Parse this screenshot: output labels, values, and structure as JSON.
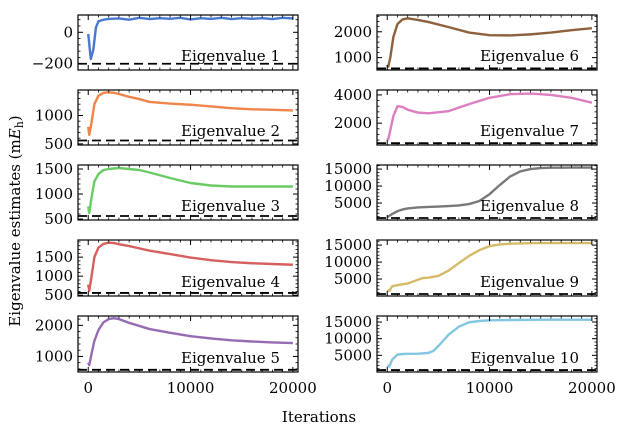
{
  "chart_data": {
    "type": "line",
    "figure": {
      "xlabel": "Iterations",
      "ylabel_prefix": "Eigenvalue estimates (m",
      "ylabel_symbol": "E",
      "ylabel_sub": "h",
      "ylabel_suffix": ")",
      "xlim": [
        -1000,
        20500
      ],
      "xticks": [
        0,
        10000,
        20000
      ],
      "xtick_labels": [
        "0",
        "10000",
        "20000"
      ]
    },
    "panels": [
      {
        "name": "Eigenvalue 1",
        "color": "#4878d0",
        "ylim": [
          -240,
          110
        ],
        "yticks": [
          0,
          -200
        ],
        "ytick_labels": [
          "0",
          "−200"
        ],
        "reference": -200,
        "x": [
          0,
          250,
          500,
          750,
          1000,
          1500,
          2000,
          3000,
          4000,
          5000,
          6000,
          7000,
          8000,
          9000,
          10000,
          11000,
          12000,
          13000,
          14000,
          15000,
          16000,
          17000,
          18000,
          19000,
          20000
        ],
        "y": [
          -10,
          -170,
          -110,
          30,
          70,
          80,
          85,
          88,
          80,
          92,
          84,
          90,
          86,
          92,
          82,
          90,
          85,
          92,
          84,
          90,
          86,
          90,
          84,
          92,
          88
        ]
      },
      {
        "name": "Eigenvalue 2",
        "color": "#ee854a",
        "ylim": [
          480,
          1450
        ],
        "yticks": [
          1000,
          500
        ],
        "ytick_labels": [
          "1000",
          "500"
        ],
        "reference": 560,
        "x": [
          0,
          100,
          300,
          600,
          1000,
          1500,
          2000,
          2500,
          3000,
          4000,
          5000,
          6000,
          8000,
          10000,
          12000,
          14000,
          16000,
          18000,
          20000
        ],
        "y": [
          800,
          660,
          850,
          1200,
          1350,
          1400,
          1410,
          1400,
          1380,
          1330,
          1290,
          1240,
          1210,
          1190,
          1160,
          1130,
          1110,
          1100,
          1090
        ]
      },
      {
        "name": "Eigenvalue 3",
        "color": "#6acc64",
        "ylim": [
          480,
          1580
        ],
        "yticks": [
          1500,
          1000,
          500
        ],
        "ytick_labels": [
          "1500",
          "1000",
          "500"
        ],
        "reference": 560,
        "x": [
          0,
          100,
          300,
          600,
          1000,
          1500,
          2000,
          3000,
          4000,
          5000,
          6000,
          8000,
          10000,
          12000,
          14000,
          16000,
          18000,
          20000
        ],
        "y": [
          750,
          620,
          900,
          1250,
          1400,
          1480,
          1500,
          1520,
          1500,
          1480,
          1430,
          1320,
          1220,
          1170,
          1150,
          1150,
          1150,
          1150
        ]
      },
      {
        "name": "Eigenvalue 4",
        "color": "#d65f5f",
        "ylim": [
          480,
          1950
        ],
        "yticks": [
          1500,
          1000,
          500
        ],
        "ytick_labels": [
          "1500",
          "1000",
          "500"
        ],
        "reference": 560,
        "x": [
          0,
          100,
          300,
          600,
          1000,
          1500,
          2000,
          2500,
          3000,
          4000,
          5000,
          6000,
          8000,
          10000,
          12000,
          14000,
          16000,
          18000,
          20000
        ],
        "y": [
          780,
          620,
          950,
          1500,
          1750,
          1850,
          1880,
          1870,
          1840,
          1790,
          1730,
          1670,
          1580,
          1490,
          1420,
          1370,
          1340,
          1320,
          1300
        ]
      },
      {
        "name": "Eigenvalue 5",
        "color": "#956cb4",
        "ylim": [
          500,
          2300
        ],
        "yticks": [
          2000,
          1000
        ],
        "ytick_labels": [
          "2000",
          "1000"
        ],
        "reference": 570,
        "x": [
          0,
          100,
          300,
          600,
          1000,
          1500,
          2000,
          2500,
          3000,
          4000,
          5000,
          6000,
          8000,
          10000,
          12000,
          14000,
          16000,
          18000,
          20000
        ],
        "y": [
          800,
          720,
          1050,
          1500,
          1850,
          2100,
          2200,
          2230,
          2200,
          2080,
          1980,
          1880,
          1760,
          1650,
          1580,
          1520,
          1480,
          1450,
          1430
        ]
      },
      {
        "name": "Eigenvalue 6",
        "color": "#8c613c",
        "ylim": [
          520,
          2650
        ],
        "yticks": [
          2000,
          1000
        ],
        "ytick_labels": [
          "2000",
          "1000"
        ],
        "reference": 580,
        "x": [
          0,
          100,
          300,
          600,
          1000,
          1500,
          2000,
          3000,
          4000,
          6000,
          8000,
          10000,
          12000,
          14000,
          16000,
          18000,
          20000
        ],
        "y": [
          720,
          650,
          1000,
          1800,
          2300,
          2480,
          2520,
          2460,
          2380,
          2180,
          1970,
          1870,
          1860,
          1900,
          1970,
          2060,
          2140
        ]
      },
      {
        "name": "Eigenvalue 7",
        "color": "#dc7ec0",
        "ylim": [
          450,
          4350
        ],
        "yticks": [
          4000,
          2000
        ],
        "ytick_labels": [
          "4000",
          "2000"
        ],
        "reference": 580,
        "x": [
          0,
          100,
          300,
          600,
          1000,
          1500,
          2000,
          3000,
          4000,
          6000,
          8000,
          10000,
          12000,
          14000,
          16000,
          18000,
          20000
        ],
        "y": [
          950,
          850,
          1500,
          2500,
          3200,
          3150,
          2950,
          2750,
          2700,
          2850,
          3350,
          3800,
          4050,
          4100,
          4000,
          3800,
          3450
        ]
      },
      {
        "name": "Eigenvalue 8",
        "color": "#797979",
        "ylim": [
          0,
          16200
        ],
        "yticks": [
          15000,
          10000,
          5000
        ],
        "ytick_labels": [
          "15000",
          "10000",
          "5000"
        ],
        "reference": 580,
        "x": [
          0,
          200,
          500,
          1000,
          1500,
          2000,
          3000,
          4000,
          5000,
          6000,
          7000,
          8000,
          9000,
          10000,
          11000,
          12000,
          13000,
          14000,
          15000,
          16000,
          17000,
          18000,
          19000,
          20000
        ],
        "y": [
          800,
          1200,
          1800,
          2600,
          3100,
          3400,
          3700,
          3850,
          3950,
          4100,
          4300,
          4700,
          5600,
          7600,
          10300,
          12800,
          14300,
          15000,
          15300,
          15400,
          15400,
          15450,
          15450,
          15450
        ]
      },
      {
        "name": "Eigenvalue 9",
        "color": "#d5bb67",
        "ylim": [
          0,
          16500
        ],
        "yticks": [
          15000,
          10000,
          5000
        ],
        "ytick_labels": [
          "15000",
          "10000",
          "5000"
        ],
        "reference": 580,
        "x": [
          0,
          200,
          500,
          1000,
          2000,
          3000,
          3500,
          4000,
          5000,
          6000,
          7000,
          8000,
          9000,
          10000,
          11000,
          12000,
          13000,
          14000,
          15000,
          16000,
          17000,
          18000,
          19000,
          20000
        ],
        "y": [
          1800,
          1500,
          2900,
          3200,
          3700,
          4800,
          5300,
          5400,
          5900,
          7500,
          9700,
          11800,
          13500,
          14700,
          15200,
          15400,
          15500,
          15550,
          15600,
          15600,
          15600,
          15600,
          15600,
          15600
        ]
      },
      {
        "name": "Eigenvalue 10",
        "color": "#82c6e2",
        "ylim": [
          0,
          16800
        ],
        "yticks": [
          15000,
          10000,
          5000
        ],
        "ytick_labels": [
          "15000",
          "10000",
          "5000"
        ],
        "reference": 580,
        "x": [
          0,
          200,
          500,
          1000,
          1500,
          2000,
          3000,
          4000,
          4500,
          5000,
          6000,
          7000,
          8000,
          9000,
          10000,
          11000,
          12000,
          14000,
          16000,
          18000,
          20000
        ],
        "y": [
          2000,
          1600,
          3800,
          5200,
          5400,
          5450,
          5500,
          5700,
          6300,
          7800,
          11200,
          13600,
          14900,
          15300,
          15500,
          15550,
          15600,
          15650,
          15700,
          15700,
          15700
        ]
      }
    ]
  }
}
